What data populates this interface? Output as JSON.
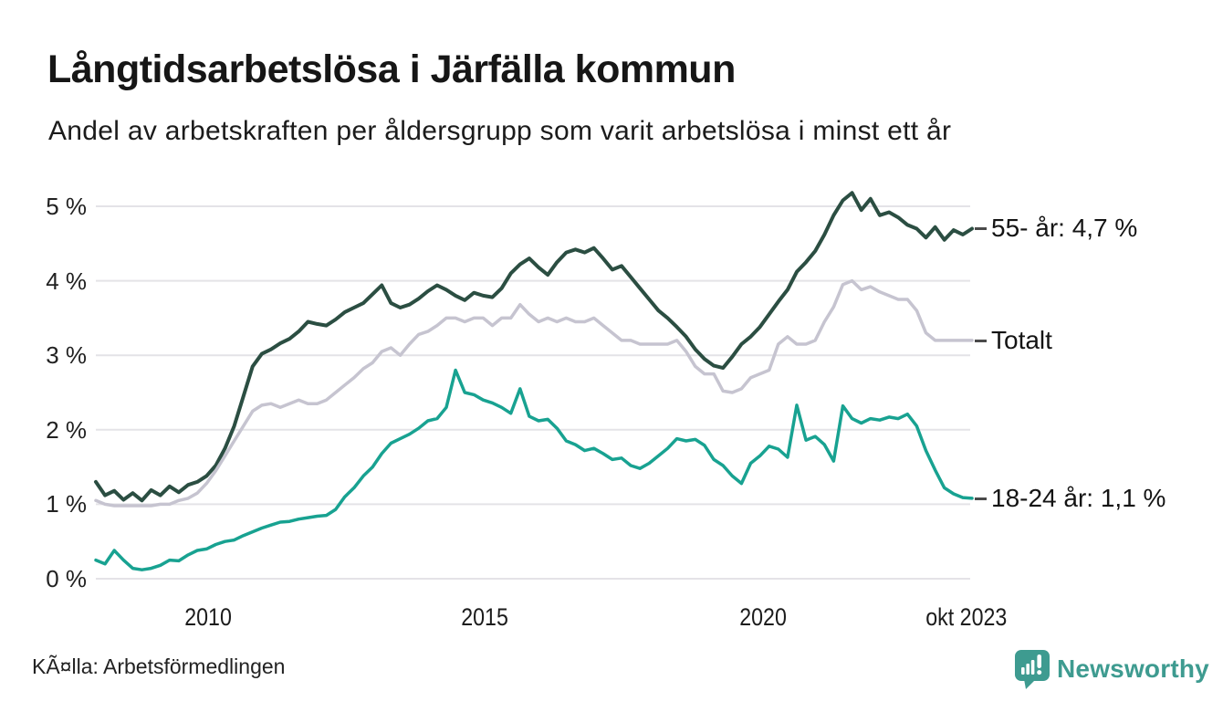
{
  "chart_data": {
    "type": "line",
    "title": "Långtidsarbetslösa i Järfälla kommun",
    "subtitle": "Andel av arbetskraften per åldersgrupp som varit arbetslösa i minst ett år",
    "xlabel": "",
    "ylabel": "",
    "xlim": [
      2008.0,
      2023.75
    ],
    "ylim": [
      0,
      5.45
    ],
    "grid": true,
    "grid_color": "#e4e3e7",
    "annotation_tick_color": "#4a4a4a",
    "legend_position": "right-end-annotations",
    "x_ticks": [
      {
        "value": 2010,
        "label": "2010"
      },
      {
        "value": 2015,
        "label": "2015"
      },
      {
        "value": 2020,
        "label": "2020"
      },
      {
        "value": 2023.75,
        "label": "okt 2023"
      }
    ],
    "y_ticks": [
      {
        "value": 0,
        "label": "0 %"
      },
      {
        "value": 1,
        "label": "1 %"
      },
      {
        "value": 2,
        "label": "2 %"
      },
      {
        "value": 3,
        "label": "3 %"
      },
      {
        "value": 4,
        "label": "4 %"
      },
      {
        "value": 5,
        "label": "5 %"
      }
    ],
    "x_unit": "year (monthly observations, Jan 2008 – Oct 2023)",
    "y_unit": "percent of labour force",
    "series": [
      {
        "name": "55- år",
        "end_label": "55- år: 4,7 %",
        "end_value": "4,7 %",
        "color": "#2b4e42",
        "stroke_width": 4,
        "values": [
          1.3,
          1.12,
          1.18,
          1.06,
          1.15,
          1.05,
          1.19,
          1.12,
          1.24,
          1.16,
          1.26,
          1.3,
          1.38,
          1.52,
          1.75,
          2.05,
          2.45,
          2.85,
          3.02,
          3.08,
          3.16,
          3.22,
          3.32,
          3.45,
          3.42,
          3.4,
          3.48,
          3.58,
          3.64,
          3.7,
          3.82,
          3.94,
          3.7,
          3.64,
          3.68,
          3.76,
          3.86,
          3.94,
          3.88,
          3.8,
          3.74,
          3.84,
          3.8,
          3.78,
          3.9,
          4.1,
          4.22,
          4.3,
          4.18,
          4.08,
          4.25,
          4.38,
          4.42,
          4.38,
          4.44,
          4.3,
          4.15,
          4.2,
          4.05,
          3.9,
          3.75,
          3.6,
          3.5,
          3.38,
          3.25,
          3.08,
          2.95,
          2.86,
          2.83,
          2.98,
          3.15,
          3.25,
          3.38,
          3.55,
          3.72,
          3.88,
          4.12,
          4.25,
          4.4,
          4.62,
          4.88,
          5.08,
          5.18,
          4.95,
          5.1,
          4.88,
          4.92,
          4.85,
          4.75,
          4.7,
          4.58,
          4.72,
          4.55,
          4.68,
          4.62,
          4.7
        ]
      },
      {
        "name": "Totalt",
        "end_label": "Totalt",
        "end_value": "3,2 %",
        "color": "#c6c4d0",
        "stroke_width": 3.5,
        "values": [
          1.05,
          1.0,
          0.98,
          0.98,
          0.98,
          0.98,
          0.98,
          1.0,
          1.0,
          1.05,
          1.08,
          1.15,
          1.28,
          1.45,
          1.65,
          1.85,
          2.05,
          2.25,
          2.33,
          2.35,
          2.3,
          2.35,
          2.4,
          2.35,
          2.35,
          2.4,
          2.5,
          2.6,
          2.7,
          2.82,
          2.9,
          3.05,
          3.1,
          3.0,
          3.15,
          3.28,
          3.32,
          3.4,
          3.5,
          3.5,
          3.45,
          3.5,
          3.5,
          3.4,
          3.5,
          3.5,
          3.68,
          3.55,
          3.45,
          3.5,
          3.45,
          3.5,
          3.45,
          3.45,
          3.5,
          3.4,
          3.3,
          3.2,
          3.2,
          3.15,
          3.15,
          3.15,
          3.15,
          3.2,
          3.05,
          2.85,
          2.75,
          2.75,
          2.52,
          2.5,
          2.55,
          2.7,
          2.75,
          2.8,
          3.15,
          3.25,
          3.15,
          3.15,
          3.2,
          3.45,
          3.65,
          3.95,
          4.0,
          3.88,
          3.92,
          3.85,
          3.8,
          3.75,
          3.75,
          3.6,
          3.3,
          3.2,
          3.2,
          3.2,
          3.2,
          3.2
        ]
      },
      {
        "name": "18-24 år",
        "end_label": "18-24 år: 1,1 %",
        "end_value": "1,1 %",
        "color": "#18a291",
        "stroke_width": 3.5,
        "values": [
          0.25,
          0.2,
          0.38,
          0.25,
          0.14,
          0.12,
          0.14,
          0.18,
          0.25,
          0.24,
          0.32,
          0.38,
          0.4,
          0.46,
          0.5,
          0.52,
          0.58,
          0.63,
          0.68,
          0.72,
          0.76,
          0.77,
          0.8,
          0.82,
          0.84,
          0.85,
          0.93,
          1.1,
          1.22,
          1.38,
          1.5,
          1.68,
          1.82,
          1.88,
          1.94,
          2.02,
          2.12,
          2.15,
          2.3,
          2.8,
          2.5,
          2.47,
          2.4,
          2.36,
          2.3,
          2.22,
          2.55,
          2.18,
          2.12,
          2.14,
          2.02,
          1.85,
          1.8,
          1.72,
          1.75,
          1.68,
          1.6,
          1.62,
          1.52,
          1.48,
          1.55,
          1.65,
          1.75,
          1.88,
          1.85,
          1.87,
          1.79,
          1.6,
          1.52,
          1.38,
          1.28,
          1.55,
          1.65,
          1.78,
          1.74,
          1.63,
          2.33,
          1.86,
          1.91,
          1.8,
          1.58,
          2.32,
          2.15,
          2.09,
          2.15,
          2.13,
          2.17,
          2.15,
          2.21,
          2.05,
          1.72,
          1.46,
          1.22,
          1.14,
          1.09,
          1.08
        ]
      }
    ]
  },
  "source": {
    "label": "KÃ¤lla: Arbetsförmedlingen"
  },
  "branding": {
    "name": "Newsworthy",
    "color": "#3E9B90"
  }
}
